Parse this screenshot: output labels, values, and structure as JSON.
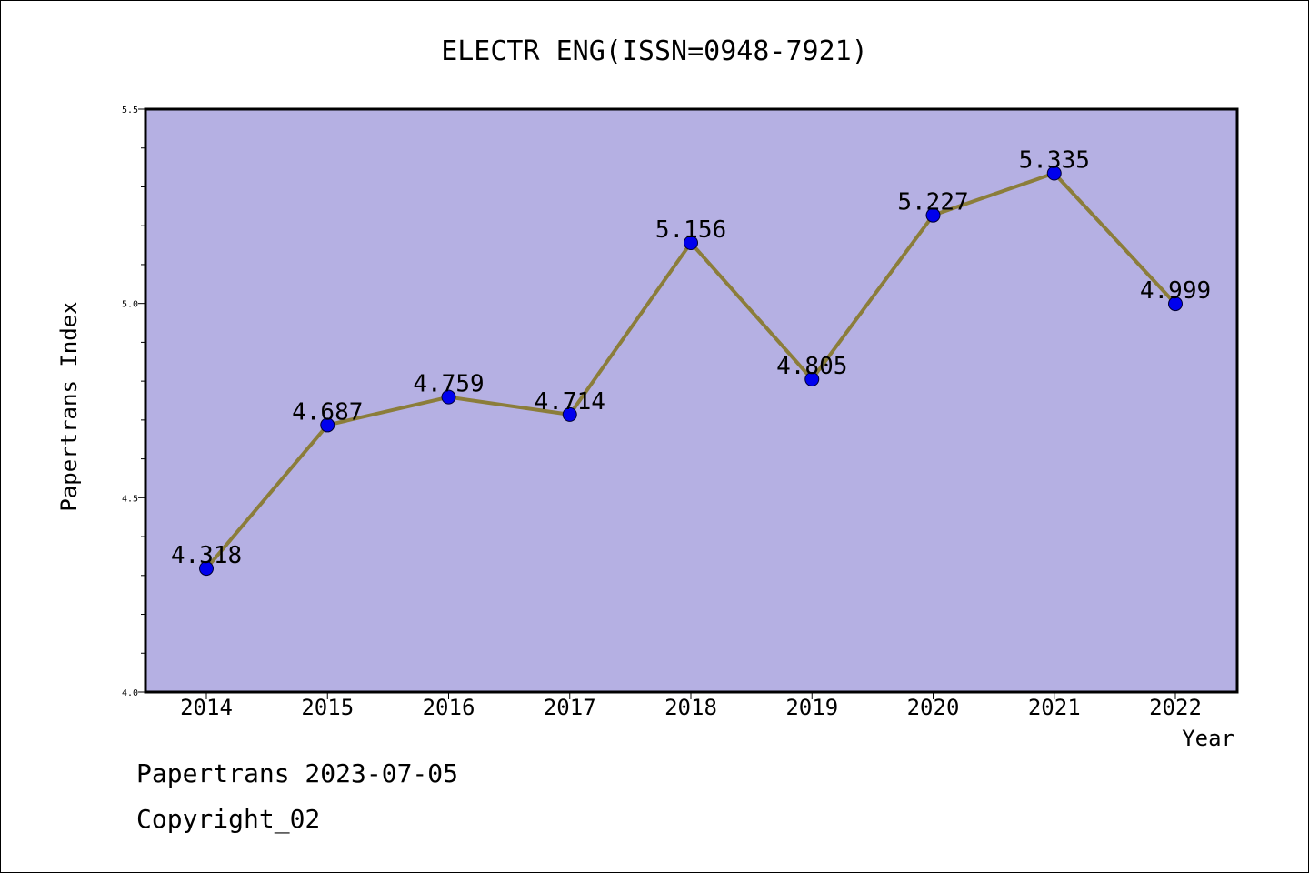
{
  "chart_data": {
    "type": "line",
    "title": "ELECTR ENG(ISSN=0948-7921)",
    "xlabel": "Year",
    "ylabel": "Papertrans Index",
    "categories": [
      "2014",
      "2015",
      "2016",
      "2017",
      "2018",
      "2019",
      "2020",
      "2021",
      "2022"
    ],
    "series": [
      {
        "values": [
          4.318,
          4.687,
          4.759,
          4.714,
          5.156,
          4.805,
          5.227,
          5.335,
          4.999
        ],
        "labels": [
          "4.318",
          "4.687",
          "4.759",
          "4.714",
          "5.156",
          "4.805",
          "5.227",
          "5.335",
          "4.999"
        ]
      }
    ],
    "ylim": [
      4.0,
      5.5
    ],
    "yticks": [
      "4.0",
      "4.5",
      "5.0",
      "5.5"
    ],
    "grid": false,
    "colors": {
      "plot_background": "#b5b0e3",
      "line": "#8b7d3a",
      "marker": "#0000ee"
    }
  },
  "footer": {
    "line1": "Papertrans 2023-07-05",
    "line2": "Copyright_02"
  }
}
